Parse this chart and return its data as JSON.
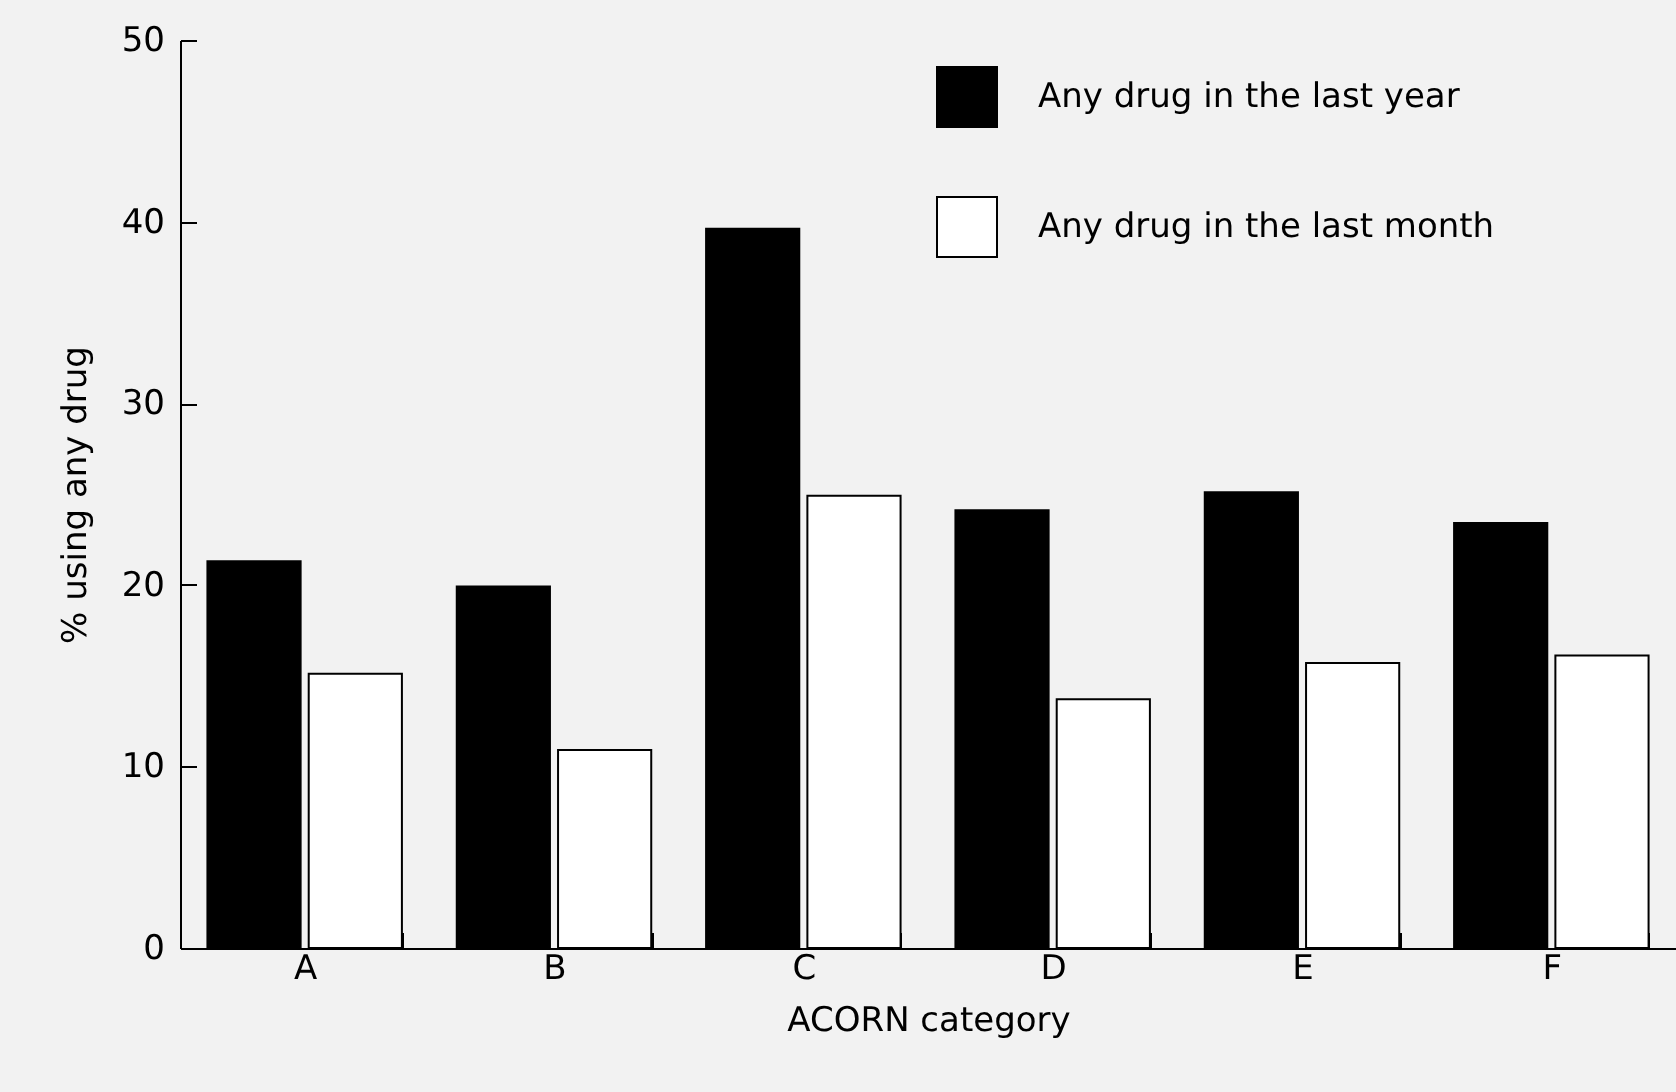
{
  "chart_data": {
    "type": "bar",
    "xlabel": "ACORN category",
    "ylabel": "% using any drug",
    "categories": [
      "A",
      "B",
      "C",
      "D",
      "E",
      "F"
    ],
    "series": [
      {
        "name": "Any drug in the last year",
        "color": "#000000",
        "values": [
          21.3,
          19.9,
          39.6,
          24.1,
          25.1,
          23.4
        ]
      },
      {
        "name": "Any drug in the last month",
        "color": "#ffffff",
        "values": [
          15.1,
          10.9,
          24.9,
          13.7,
          15.7,
          16.1
        ]
      }
    ],
    "ylim": [
      0,
      50
    ],
    "yticks": [
      0,
      10,
      20,
      30,
      40,
      50
    ],
    "grid": false,
    "legend": "top right"
  }
}
